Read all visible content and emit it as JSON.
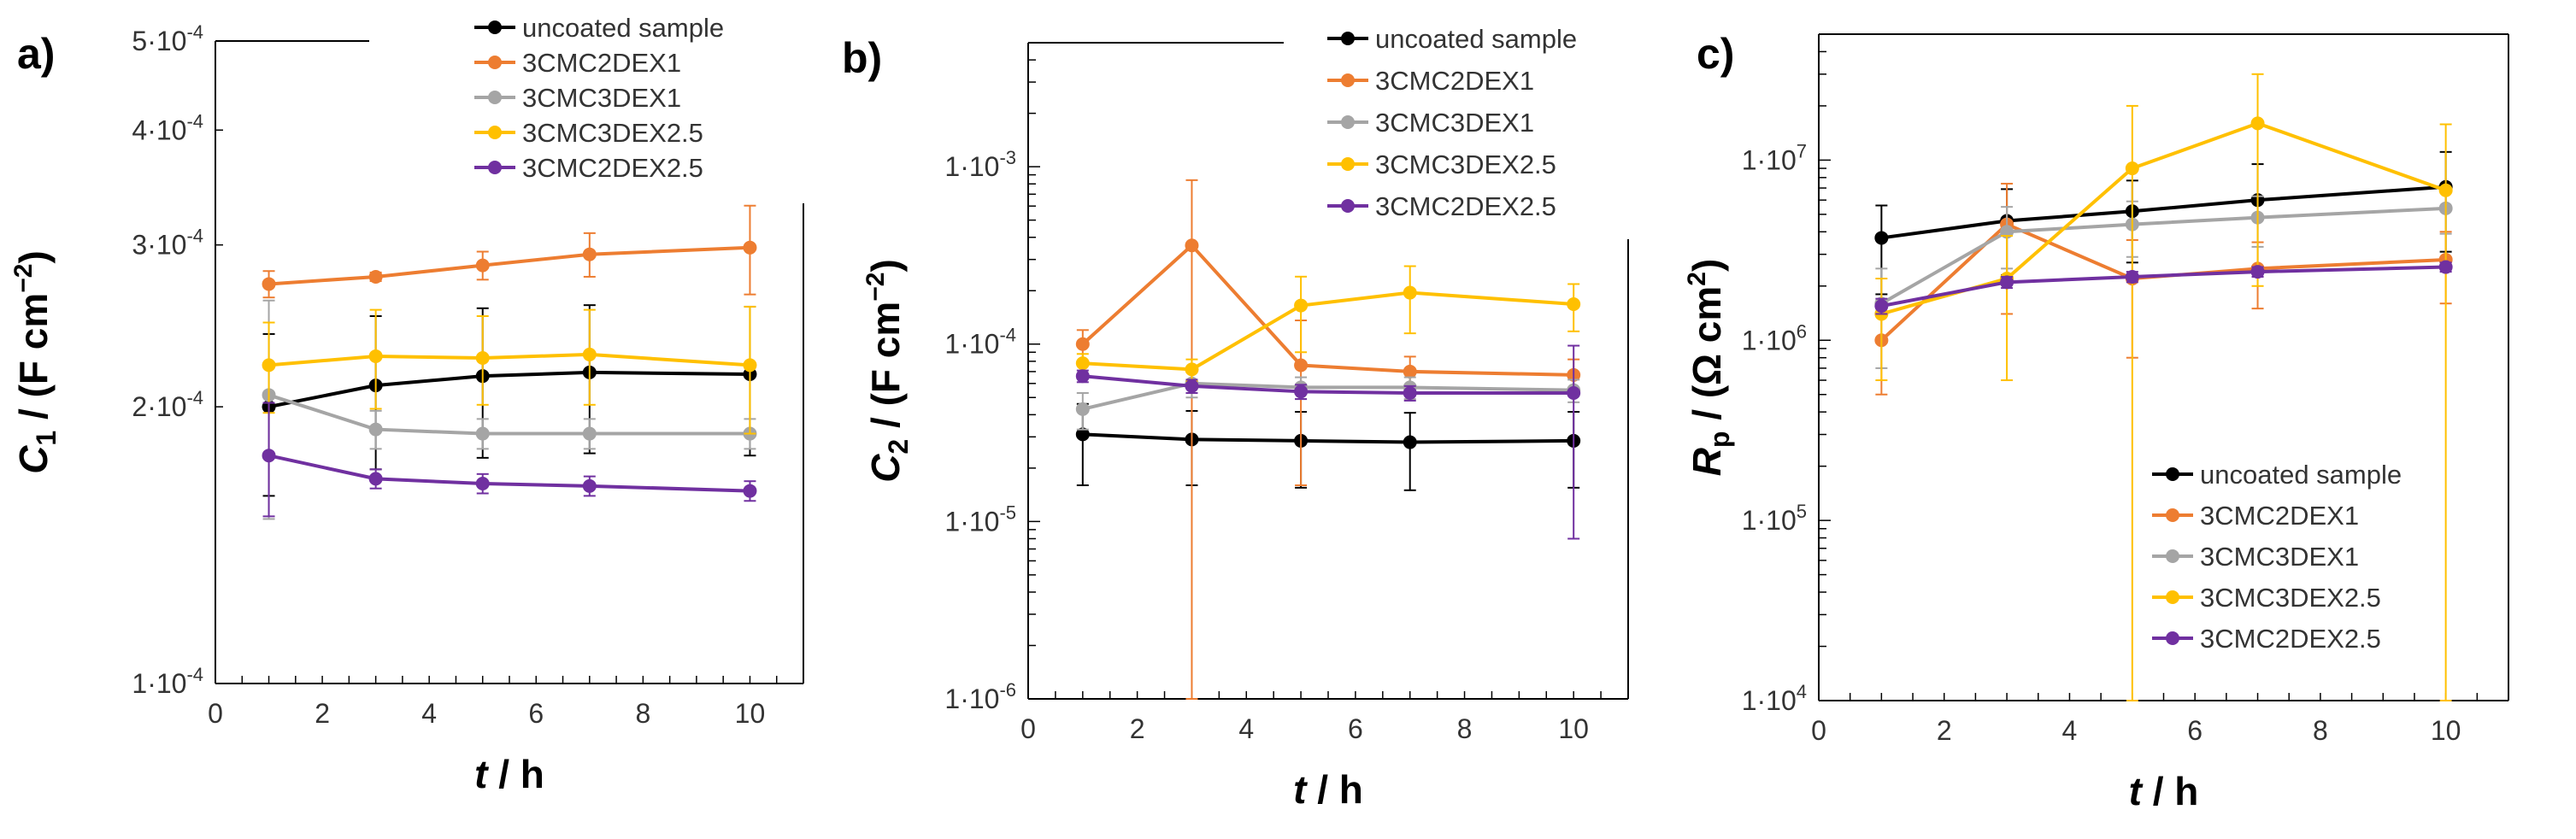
{
  "chart_data": [
    {
      "type": "line",
      "panel_label": "a)",
      "xlabel": "t / h",
      "ylabel": "C1 / (F cm−2)",
      "yscale": "log",
      "xlim": [
        0,
        11
      ],
      "ylim": [
        0.0001,
        0.0005
      ],
      "x_ticks": [
        0,
        2,
        4,
        6,
        8,
        10
      ],
      "y_ticks": [
        0.0001,
        0.0002,
        0.0003,
        0.0004,
        0.0005
      ],
      "y_tick_labels": [
        "1·10-4",
        "2·10-4",
        "3·10-4",
        "4·10-4",
        "5·10-4"
      ],
      "legend": "top-right",
      "x": [
        1,
        3,
        5,
        7,
        10
      ],
      "series": [
        {
          "name": "uncoated sample",
          "color": "#000000",
          "values": [
            0.0002,
            0.000211,
            0.000216,
            0.000218,
            0.000217
          ],
          "err": [
            4e-05,
            4e-05,
            4e-05,
            4e-05,
            4e-05
          ]
        },
        {
          "name": "3CMC2DEX1",
          "color": "#ed7d31",
          "values": [
            0.000272,
            0.000277,
            0.000285,
            0.000293,
            0.000298
          ],
          "err": [
            9e-06,
            3e-06,
            1e-05,
            1.6e-05,
            3.3e-05
          ]
        },
        {
          "name": "3CMC3DEX1",
          "color": "#a5a5a5",
          "values": [
            0.000206,
            0.000189,
            0.000187,
            0.000187,
            0.000187
          ],
          "err": [
            5.5e-05,
            9e-06,
            7e-06,
            7e-06,
            7e-06
          ]
        },
        {
          "name": "3CMC3DEX2.5",
          "color": "#ffc000",
          "values": [
            0.000222,
            0.000227,
            0.000226,
            0.000228,
            0.000222
          ],
          "err": [
            2.5e-05,
            2.8e-05,
            2.5e-05,
            2.7e-05,
            3.5e-05
          ]
        },
        {
          "name": "3CMC2DEX2.5",
          "color": "#7030a0",
          "values": [
            0.000177,
            0.000167,
            0.000165,
            0.000164,
            0.000162
          ],
          "err": [
            2.5e-05,
            4e-06,
            4e-06,
            4e-06,
            4e-06
          ]
        }
      ]
    },
    {
      "type": "line",
      "panel_label": "b)",
      "xlabel": "t / h",
      "ylabel": "C2 / (F cm−2)",
      "yscale": "log",
      "xlim": [
        0,
        11
      ],
      "ylim": [
        1e-06,
        0.005
      ],
      "x_ticks": [
        0,
        2,
        4,
        6,
        8,
        10
      ],
      "y_ticks": [
        1e-06,
        1e-05,
        0.0001,
        0.001
      ],
      "y_tick_labels": [
        "1·10-6",
        "1·10-5",
        "1·10-4",
        "1·10-3"
      ],
      "legend": "top-right",
      "x": [
        1,
        3,
        5,
        7,
        10
      ],
      "series": [
        {
          "name": "uncoated sample",
          "color": "#000000",
          "values": [
            3.1e-05,
            2.9e-05,
            2.85e-05,
            2.8e-05,
            2.85e-05
          ],
          "err": [
            1.5e-05,
            1.3e-05,
            1.3e-05,
            1.3e-05,
            1.3e-05
          ]
        },
        {
          "name": "3CMC2DEX1",
          "color": "#ed7d31",
          "values": [
            0.0001,
            0.00036,
            7.6e-05,
            7e-05,
            6.7e-05
          ],
          "err": [
            2e-05,
            0.00048,
            6e-05,
            1.5e-05,
            1.5e-05
          ]
        },
        {
          "name": "3CMC3DEX1",
          "color": "#a5a5a5",
          "values": [
            4.3e-05,
            6e-05,
            5.7e-05,
            5.7e-05,
            5.5e-05
          ],
          "err": [
            1e-05,
            1e-05,
            8e-06,
            8e-06,
            8e-06
          ]
        },
        {
          "name": "3CMC3DEX2.5",
          "color": "#ffc000",
          "values": [
            7.8e-05,
            7.2e-05,
            0.000165,
            0.000195,
            0.000168
          ],
          "err": [
            1e-05,
            1e-05,
            7.5e-05,
            8e-05,
            5e-05
          ]
        },
        {
          "name": "3CMC2DEX2.5",
          "color": "#7030a0",
          "values": [
            6.6e-05,
            5.8e-05,
            5.4e-05,
            5.3e-05,
            5.3e-05
          ],
          "err": [
            5e-06,
            5e-06,
            5e-06,
            5e-06,
            4.5e-05
          ]
        }
      ]
    },
    {
      "type": "line",
      "panel_label": "c)",
      "xlabel": "t / h",
      "ylabel": "Rp / (Ω cm2)",
      "yscale": "log",
      "xlim": [
        0,
        11
      ],
      "ylim": [
        10000,
        50000000
      ],
      "x_ticks": [
        0,
        2,
        4,
        6,
        8,
        10
      ],
      "y_ticks": [
        10000,
        100000,
        1000000,
        10000000
      ],
      "y_tick_labels": [
        "1·104",
        "1·105",
        "1·106",
        "1·107"
      ],
      "legend": "bottom-right",
      "x": [
        1,
        3,
        5,
        7,
        10
      ],
      "series": [
        {
          "name": "uncoated sample",
          "color": "#000000",
          "values": [
            3700000,
            4600000,
            5200000,
            6000000,
            7100000
          ],
          "err": [
            1900000,
            2300000,
            2500000,
            3500000,
            4000000
          ]
        },
        {
          "name": "3CMC2DEX1",
          "color": "#ed7d31",
          "values": [
            1000000,
            4400000,
            2200000,
            2500000,
            2800000
          ],
          "err": [
            500000,
            3000000,
            1400000,
            1000000,
            1200000
          ]
        },
        {
          "name": "3CMC3DEX1",
          "color": "#a5a5a5",
          "values": [
            1600000,
            4000000,
            4400000,
            4800000,
            5400000
          ],
          "err": [
            900000,
            1500000,
            1500000,
            1500000,
            1500000
          ]
        },
        {
          "name": "3CMC3DEX2.5",
          "color": "#ffc000",
          "values": [
            1400000,
            2200000,
            9000000,
            16000000,
            6800000
          ],
          "err": [
            800000,
            1600000,
            11000000,
            14000000,
            9000000
          ]
        },
        {
          "name": "3CMC2DEX2.5",
          "color": "#7030a0",
          "values": [
            1550000,
            2100000,
            2250000,
            2400000,
            2550000
          ],
          "err": [
            150000,
            150000,
            150000,
            150000,
            150000
          ]
        }
      ]
    }
  ]
}
